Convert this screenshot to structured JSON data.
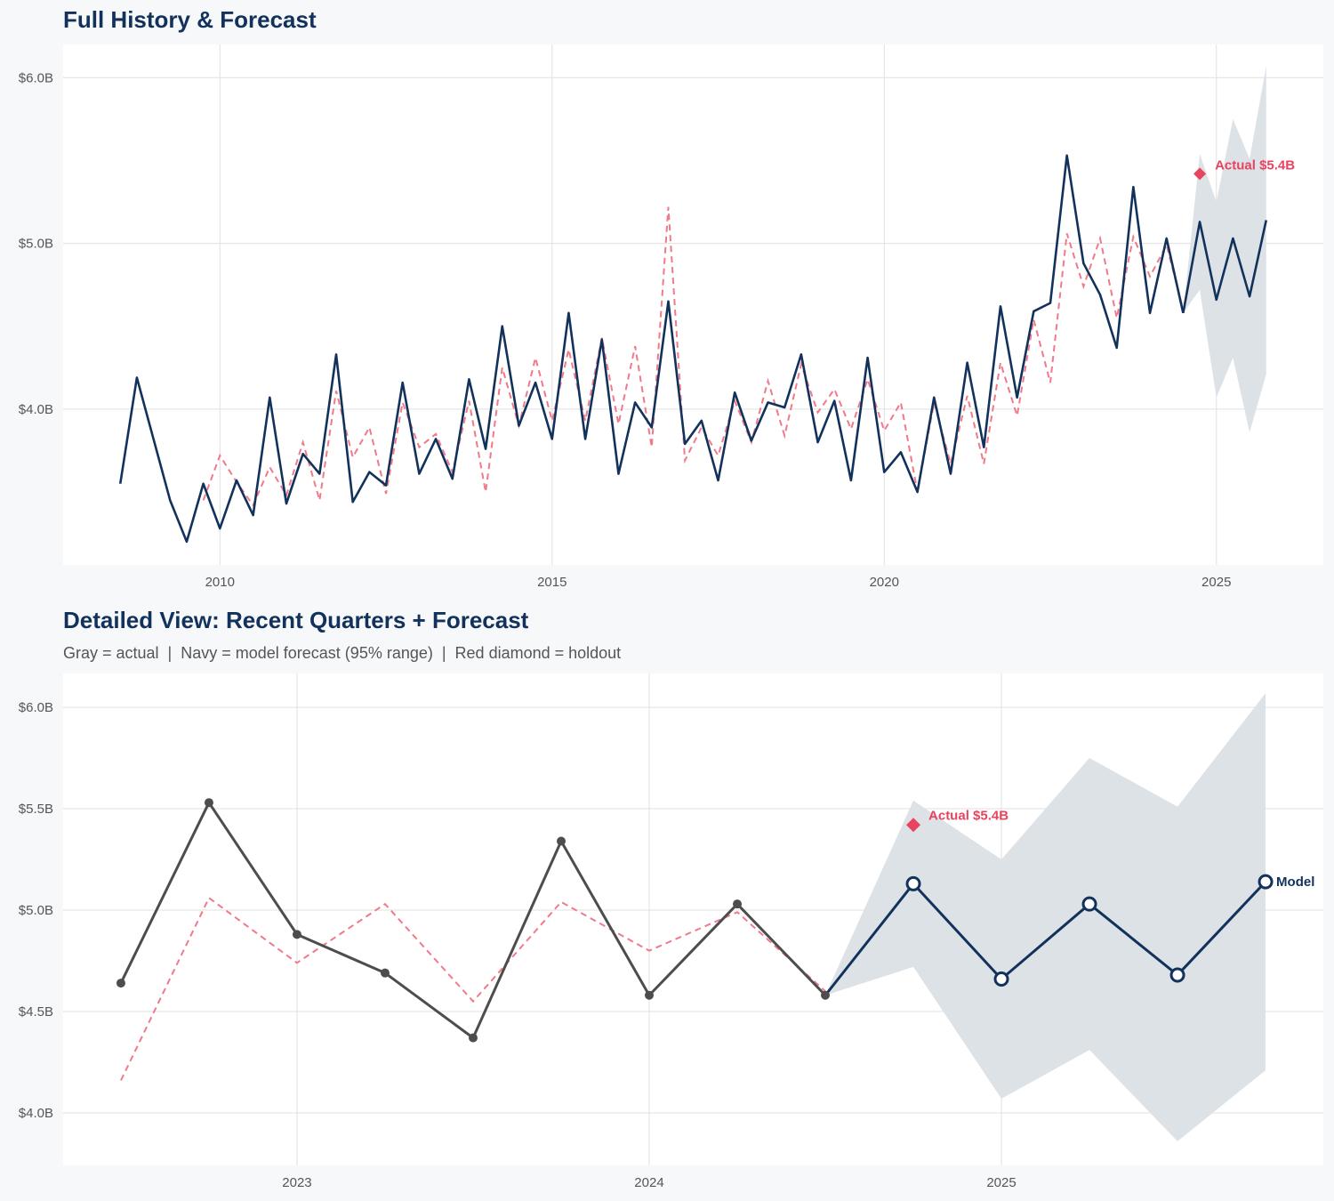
{
  "colors": {
    "background": "#f7f8fa",
    "navy": "#12325c",
    "gray_actual": "#4d4d4d",
    "fitted_dashed": "#f07a8c",
    "holdout": "#e8435f",
    "band": "#dbe0e6",
    "grid": "#e0e0e0"
  },
  "chart_data": [
    {
      "type": "line",
      "title": "Full History & Forecast",
      "xlim": [
        2007.64,
        2026.61
      ],
      "ylim": [
        3.06,
        6.2
      ],
      "grid": true,
      "xticks": [
        {
          "value": 2010,
          "label": "2010"
        },
        {
          "value": 2015,
          "label": "2015"
        },
        {
          "value": 2020,
          "label": "2020"
        },
        {
          "value": 2025,
          "label": "2025"
        }
      ],
      "yticks": [
        {
          "value": 4.0,
          "label": "$4.0B"
        },
        {
          "value": 5.0,
          "label": "$5.0B"
        },
        {
          "value": 6.0,
          "label": "$6.0B"
        }
      ],
      "x": [
        2008.5,
        2008.75,
        2009.0,
        2009.25,
        2009.5,
        2009.75,
        2010.0,
        2010.25,
        2010.5,
        2010.75,
        2011.0,
        2011.25,
        2011.5,
        2011.75,
        2012.0,
        2012.25,
        2012.5,
        2012.75,
        2013.0,
        2013.25,
        2013.5,
        2013.75,
        2014.0,
        2014.25,
        2014.5,
        2014.75,
        2015.0,
        2015.25,
        2015.5,
        2015.75,
        2016.0,
        2016.25,
        2016.5,
        2016.75,
        2017.0,
        2017.25,
        2017.5,
        2017.75,
        2018.0,
        2018.25,
        2018.5,
        2018.75,
        2019.0,
        2019.25,
        2019.5,
        2019.75,
        2020.0,
        2020.25,
        2020.5,
        2020.75,
        2021.0,
        2021.25,
        2021.5,
        2021.75,
        2022.0,
        2022.25,
        2022.5,
        2022.75,
        2023.0,
        2023.25,
        2023.5,
        2023.75,
        2024.0,
        2024.25,
        2024.5
      ],
      "actual": [
        3.55,
        4.19,
        3.82,
        3.45,
        3.2,
        3.55,
        3.28,
        3.57,
        3.36,
        4.07,
        3.43,
        3.73,
        3.61,
        4.33,
        3.44,
        3.62,
        3.54,
        4.16,
        3.61,
        3.82,
        3.58,
        4.18,
        3.76,
        4.5,
        3.9,
        4.16,
        3.82,
        4.58,
        3.82,
        4.42,
        3.61,
        4.04,
        3.89,
        4.65,
        3.79,
        3.93,
        3.57,
        4.1,
        3.81,
        4.04,
        4.01,
        4.33,
        3.8,
        4.05,
        3.57,
        4.31,
        3.62,
        3.74,
        3.5,
        4.07,
        3.61,
        4.28,
        3.77,
        4.62,
        4.07,
        4.59,
        4.64,
        5.53,
        4.88,
        4.69,
        4.37,
        5.34,
        4.58,
        5.03,
        4.58
      ],
      "fitted": [
        null,
        null,
        null,
        null,
        null,
        3.45,
        3.72,
        3.56,
        3.42,
        3.65,
        3.48,
        3.8,
        3.45,
        4.11,
        3.71,
        3.89,
        3.49,
        4.04,
        3.77,
        3.85,
        3.62,
        4.05,
        3.5,
        4.25,
        3.9,
        4.31,
        3.93,
        4.36,
        3.93,
        4.43,
        3.91,
        4.38,
        3.77,
        5.22,
        3.69,
        3.89,
        3.72,
        4.05,
        3.8,
        4.17,
        3.84,
        4.27,
        3.98,
        4.12,
        3.88,
        4.18,
        3.87,
        4.04,
        3.5,
        4.04,
        3.67,
        4.08,
        3.67,
        4.28,
        3.96,
        4.54,
        4.16,
        5.06,
        4.74,
        5.03,
        4.55,
        5.04,
        4.8,
        4.99,
        4.6
      ],
      "forecast": {
        "x": [
          2024.5,
          2024.75,
          2025.0,
          2025.25,
          2025.5,
          2025.75
        ],
        "values": [
          4.58,
          5.13,
          4.66,
          5.03,
          4.68,
          5.14
        ],
        "lower": [
          4.58,
          4.72,
          4.07,
          4.31,
          3.86,
          4.21
        ],
        "upper": [
          4.58,
          5.54,
          5.25,
          5.75,
          5.51,
          6.07
        ]
      },
      "holdout": {
        "x": 2024.75,
        "value": 5.42,
        "label": "Actual $5.4B"
      }
    },
    {
      "type": "line",
      "title": "Detailed View: Recent Quarters + Forecast",
      "subtitle": "Gray = actual  |  Navy = model forecast (95% range)  |  Red diamond = holdout",
      "xlim": [
        2022.336,
        2025.914
      ],
      "ylim": [
        3.741,
        6.167
      ],
      "grid": true,
      "xticks": [
        {
          "value": 2023,
          "label": "2023"
        },
        {
          "value": 2024,
          "label": "2024"
        },
        {
          "value": 2025,
          "label": "2025"
        }
      ],
      "yticks": [
        {
          "value": 4.0,
          "label": "$4.0B"
        },
        {
          "value": 4.5,
          "label": "$4.5B"
        },
        {
          "value": 5.0,
          "label": "$5.0B"
        },
        {
          "value": 5.5,
          "label": "$5.5B"
        },
        {
          "value": 6.0,
          "label": "$6.0B"
        }
      ],
      "x": [
        2022.5,
        2022.75,
        2023.0,
        2023.25,
        2023.5,
        2023.75,
        2024.0,
        2024.25,
        2024.5
      ],
      "actual": [
        4.64,
        5.53,
        4.88,
        4.69,
        4.37,
        5.34,
        4.58,
        5.03,
        4.58
      ],
      "fitted": [
        4.16,
        5.06,
        4.74,
        5.03,
        4.55,
        5.04,
        4.8,
        4.99,
        4.6
      ],
      "forecast": {
        "x": [
          2024.5,
          2024.75,
          2025.0,
          2025.25,
          2025.5,
          2025.75
        ],
        "values": [
          4.58,
          5.13,
          4.66,
          5.03,
          4.68,
          5.14
        ],
        "lower": [
          4.58,
          4.72,
          4.07,
          4.31,
          3.86,
          4.21
        ],
        "upper": [
          4.58,
          5.54,
          5.25,
          5.75,
          5.51,
          6.07
        ],
        "end_label": "Model"
      },
      "holdout": {
        "x": 2024.75,
        "value": 5.42,
        "label": "Actual $5.4B"
      }
    }
  ]
}
